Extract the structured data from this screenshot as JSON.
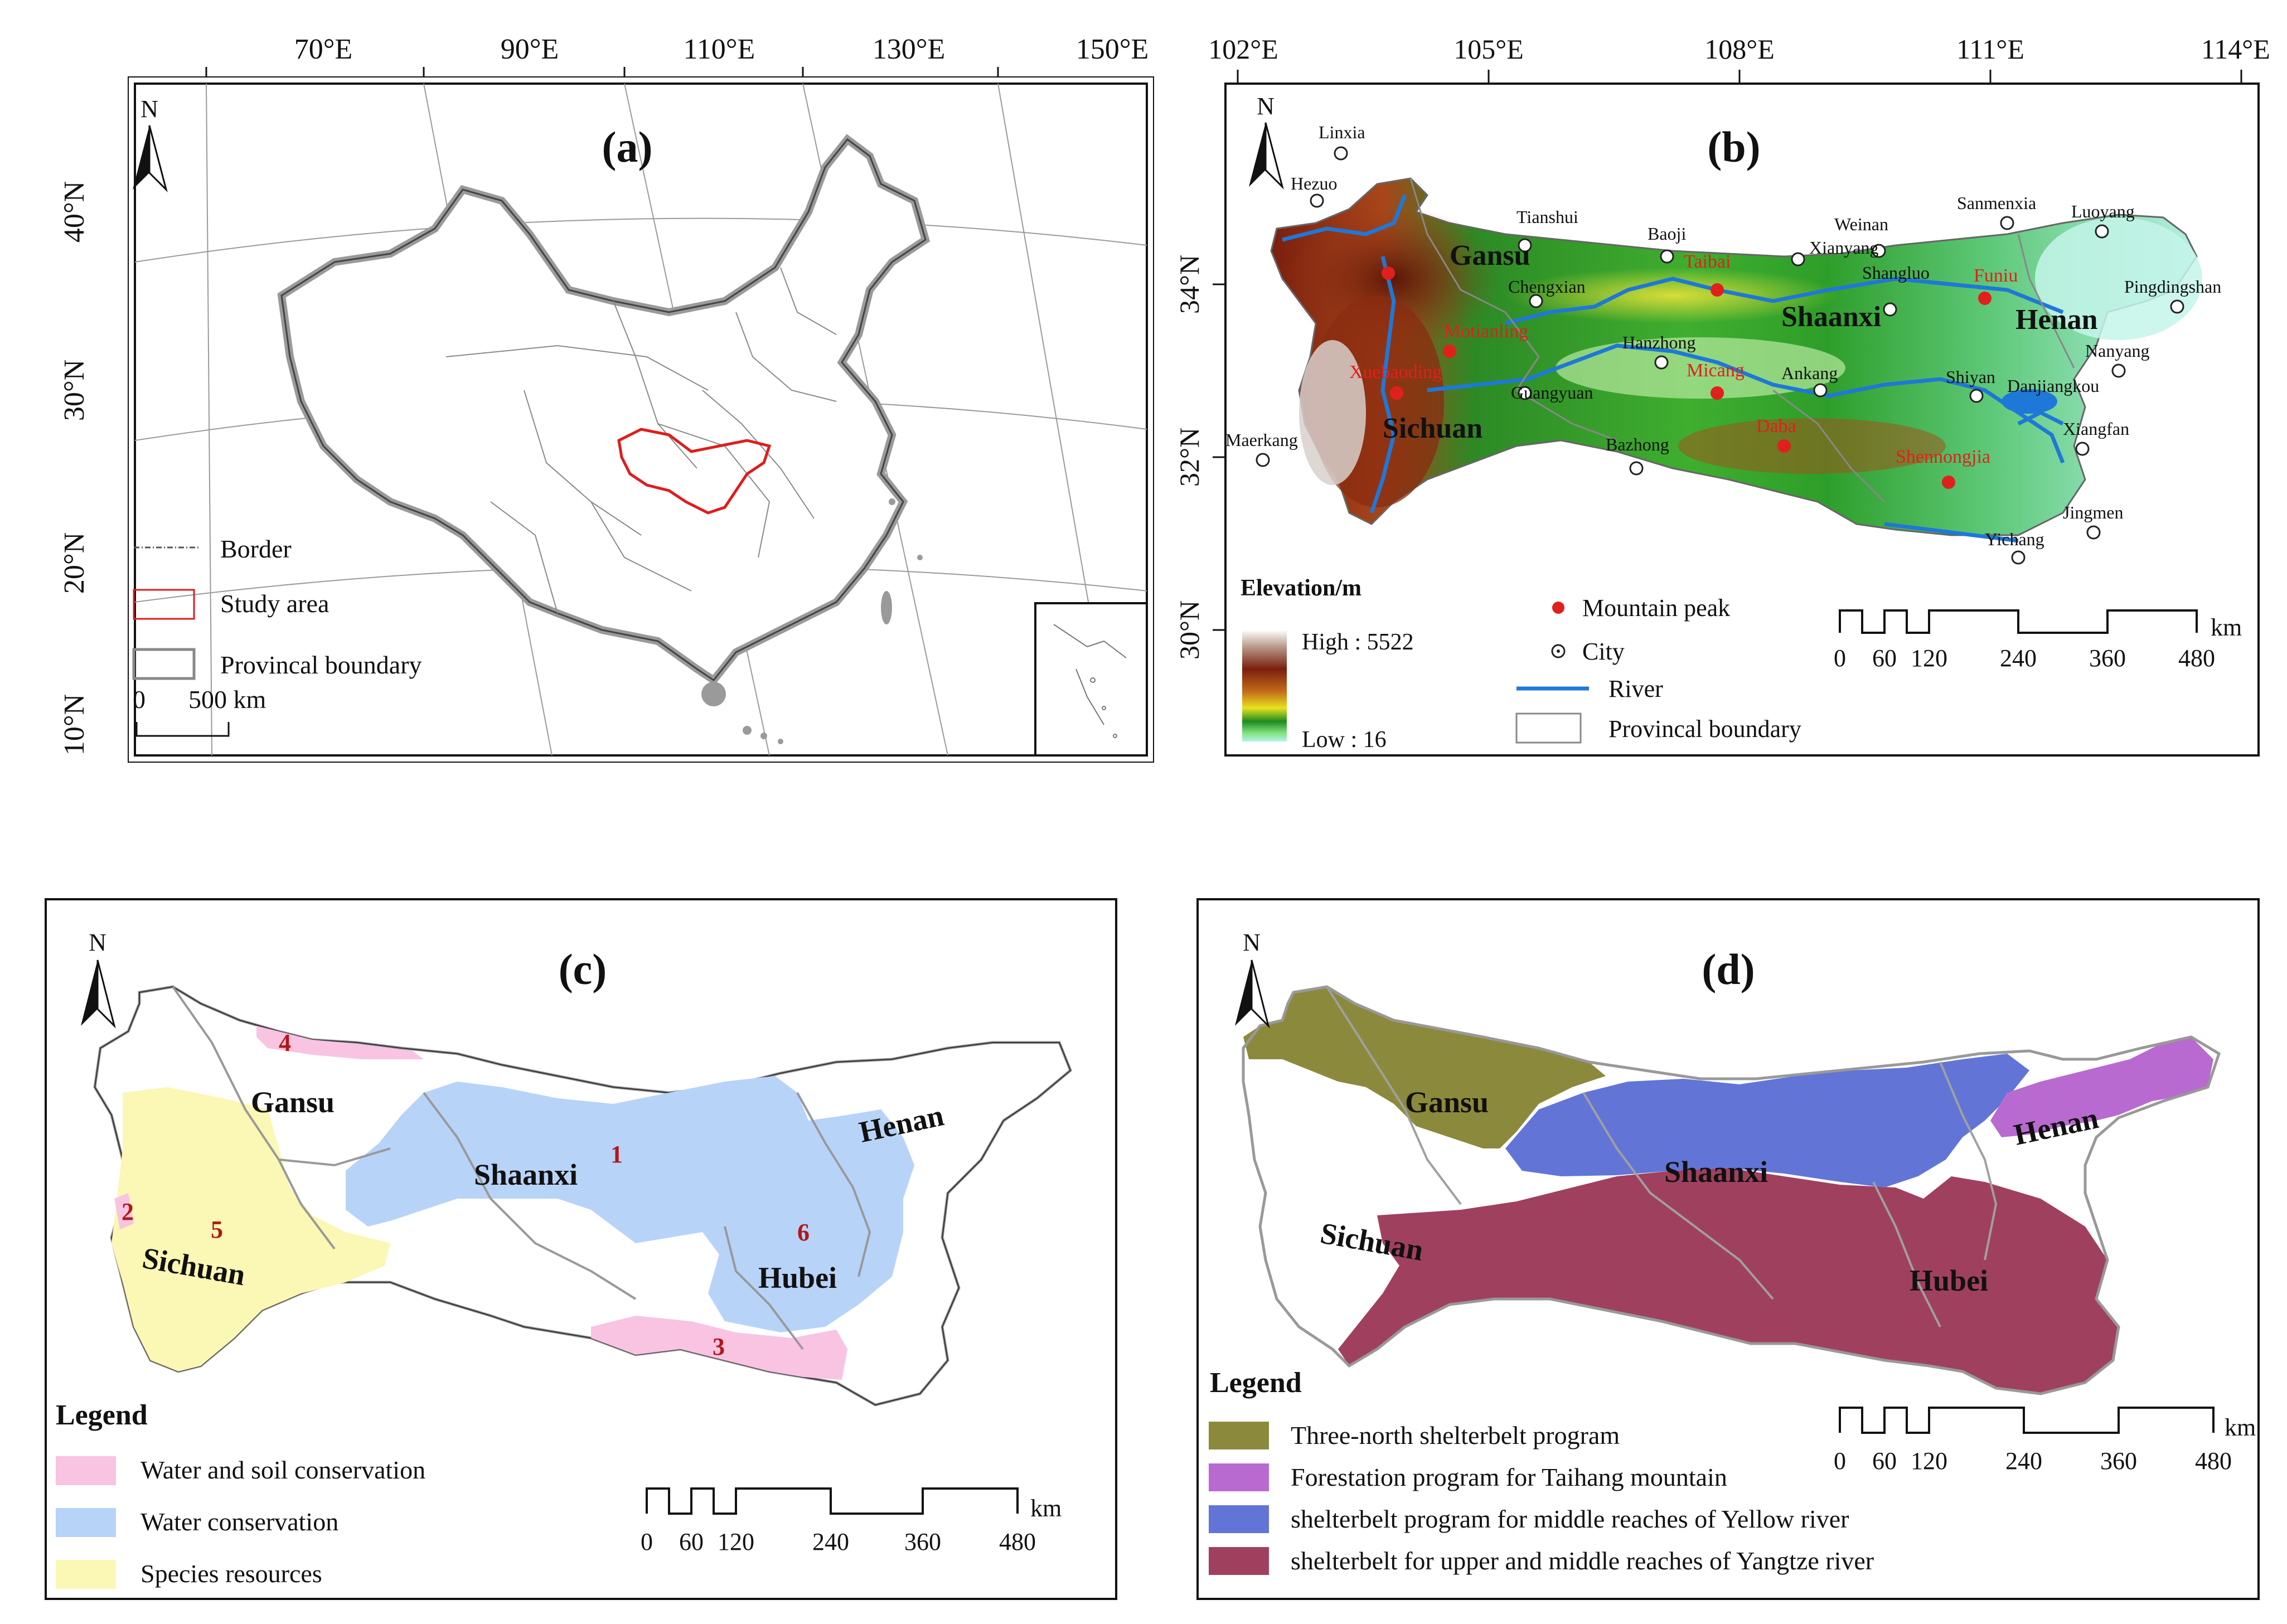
{
  "panel_a": {
    "label": "(a)",
    "north": "N",
    "lon_ticks": [
      "70°E",
      "90°E",
      "110°E",
      "130°E",
      "150°E"
    ],
    "lat_ticks": [
      "40°N",
      "30°N",
      "20°N",
      "10°N"
    ],
    "legend": {
      "border": "Border",
      "study": "Study area",
      "province": "Provincal boundary"
    },
    "scale": {
      "zero": "0",
      "value": "500 km"
    }
  },
  "panel_b": {
    "label": "(b)",
    "north": "N",
    "lon_ticks": [
      "102°E",
      "105°E",
      "108°E",
      "111°E",
      "114°E"
    ],
    "lat_ticks": [
      "34°N",
      "32°N",
      "30°N"
    ],
    "provinces": {
      "gansu": "Gansu",
      "shaanxi": "Shaanxi",
      "henan": "Henan",
      "sichuan": "Sichuan"
    },
    "cities": [
      "Linxia",
      "Hezuo",
      "Tianshui",
      "Baoji",
      "Weinan",
      "Xianyang",
      "Sanmenxia",
      "Luoyang",
      "Pingdingshan",
      "Chengxian",
      "Shangluo",
      "Hanzhong",
      "Ankang",
      "Shiyan",
      "Nanyang",
      "Danjiangkou",
      "Guangyuan",
      "Maerkang",
      "Bazhong",
      "Xiangfan",
      "Jingmen",
      "Yichang"
    ],
    "peaks": [
      "Taibai",
      "Funiu",
      "Micang",
      "Daba",
      "Shennongjia",
      "Xuebaoding",
      "Motianling"
    ],
    "elevation": {
      "title": "Elevation/m",
      "high": "High : 5522",
      "low": "Low : 16"
    },
    "legend": {
      "peak": "Mountain peak",
      "city": "City",
      "river": "River",
      "province": "Provincal boundary"
    },
    "scale": {
      "ticks": [
        "0",
        "60",
        "120",
        "240",
        "360",
        "480"
      ],
      "unit": "km"
    },
    "colors": {
      "high": "#7a1f0e",
      "mid": "#2e9e2a",
      "low": "#aef0e0",
      "river": "#1e78d8",
      "peak": "#e0201c"
    }
  },
  "panel_c": {
    "label": "(c)",
    "north": "N",
    "provinces": {
      "gansu": "Gansu",
      "shaanxi": "Shaanxi",
      "henan": "Henan",
      "sichuan": "Sichuan",
      "hubei": "Hubei"
    },
    "zones": [
      "1",
      "2",
      "3",
      "4",
      "5",
      "6"
    ],
    "legend_title": "Legend",
    "legend": [
      "Water and soil conservation",
      "Water conservation",
      "Species resources"
    ],
    "scale": {
      "ticks": [
        "0",
        "60",
        "120",
        "240",
        "360",
        "480"
      ],
      "unit": "km"
    },
    "colors": {
      "soil": "#f9c3e2",
      "water": "#b8d3f8",
      "species": "#fbf7b4",
      "zone_label": "#b01818"
    }
  },
  "panel_d": {
    "label": "(d)",
    "north": "N",
    "provinces": {
      "gansu": "Gansu",
      "shaanxi": "Shaanxi",
      "henan": "Henan",
      "sichuan": "Sichuan",
      "hubei": "Hubei"
    },
    "legend_title": "Legend",
    "legend": [
      "Three-north shelterbelt program",
      "Forestation program for Taihang mountain",
      "shelterbelt program for middle reaches of Yellow river",
      "shelterbelt for upper and middle reaches of Yangtze river"
    ],
    "scale": {
      "ticks": [
        "0",
        "60",
        "120",
        "240",
        "360",
        "480"
      ],
      "unit": "km"
    },
    "colors": {
      "threenorth": "#8b8a3c",
      "taihang": "#b96ad0",
      "yellow": "#6275d6",
      "yangtze": "#a0405f"
    }
  }
}
